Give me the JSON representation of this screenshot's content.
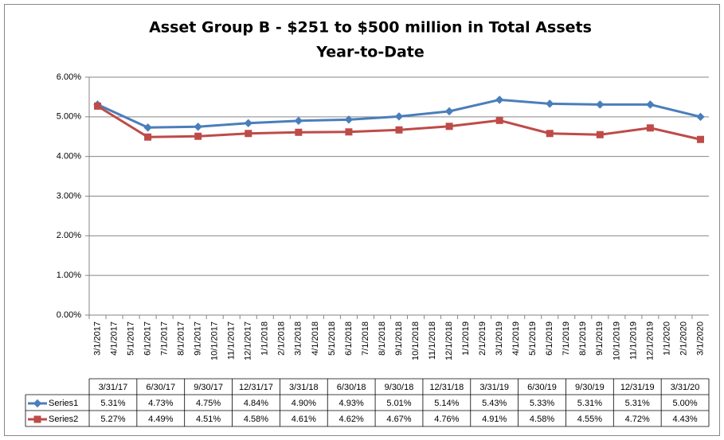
{
  "chart_data": {
    "type": "line",
    "title": "Asset Group B - $251 to $500 million in Total Assets",
    "subtitle": "Year-to-Date",
    "x": [
      "3/1/2017",
      "6/1/2017",
      "9/1/2017",
      "12/1/2017",
      "3/1/2018",
      "6/1/2018",
      "9/1/2018",
      "12/1/2018",
      "3/1/2019",
      "6/1/2019",
      "9/1/2019",
      "12/1/2019",
      "3/1/2020"
    ],
    "xticks": [
      "3/1/2017",
      "4/1/2017",
      "5/1/2017",
      "6/1/2017",
      "7/1/2017",
      "8/1/2017",
      "9/1/2017",
      "10/1/2017",
      "11/1/2017",
      "12/1/2017",
      "1/1/2018",
      "2/1/2018",
      "3/1/2018",
      "4/1/2018",
      "5/1/2018",
      "6/1/2018",
      "7/1/2018",
      "8/1/2018",
      "9/1/2018",
      "10/1/2018",
      "11/1/2018",
      "12/1/2018",
      "1/1/2019",
      "2/1/2019",
      "3/1/2019",
      "4/1/2019",
      "5/1/2019",
      "6/1/2019",
      "7/1/2019",
      "8/1/2019",
      "9/1/2019",
      "10/1/2019",
      "11/1/2019",
      "12/1/2019",
      "1/1/2020",
      "2/1/2020",
      "3/1/2020"
    ],
    "table_columns": [
      "3/31/17",
      "6/30/17",
      "9/30/17",
      "12/31/17",
      "3/31/18",
      "6/30/18",
      "9/30/18",
      "12/31/18",
      "3/31/19",
      "6/30/19",
      "9/30/19",
      "12/31/19",
      "3/31/20"
    ],
    "series": [
      {
        "name": "Series1",
        "color": "#4a7ebb",
        "marker": "diamond",
        "values": [
          5.31,
          4.73,
          4.75,
          4.84,
          4.9,
          4.93,
          5.01,
          5.14,
          5.43,
          5.33,
          5.31,
          5.31,
          5.0
        ],
        "value_labels": [
          "5.31%",
          "4.73%",
          "4.75%",
          "4.84%",
          "4.90%",
          "4.93%",
          "5.01%",
          "5.14%",
          "5.43%",
          "5.33%",
          "5.31%",
          "5.31%",
          "5.00%"
        ]
      },
      {
        "name": "Series2",
        "color": "#be4b48",
        "marker": "square",
        "values": [
          5.27,
          4.49,
          4.51,
          4.58,
          4.61,
          4.62,
          4.67,
          4.76,
          4.91,
          4.58,
          4.55,
          4.72,
          4.43
        ],
        "value_labels": [
          "5.27%",
          "4.49%",
          "4.51%",
          "4.58%",
          "4.61%",
          "4.62%",
          "4.67%",
          "4.76%",
          "4.91%",
          "4.58%",
          "4.55%",
          "4.72%",
          "4.43%"
        ]
      }
    ],
    "ylim": [
      0,
      6
    ],
    "yticks": [
      {
        "value": 0,
        "label": "0.00%"
      },
      {
        "value": 1,
        "label": "1.00%"
      },
      {
        "value": 2,
        "label": "2.00%"
      },
      {
        "value": 3,
        "label": "3.00%"
      },
      {
        "value": 4,
        "label": "4.00%"
      },
      {
        "value": 5,
        "label": "5.00%"
      },
      {
        "value": 6,
        "label": "6.00%"
      }
    ],
    "grid": true
  }
}
